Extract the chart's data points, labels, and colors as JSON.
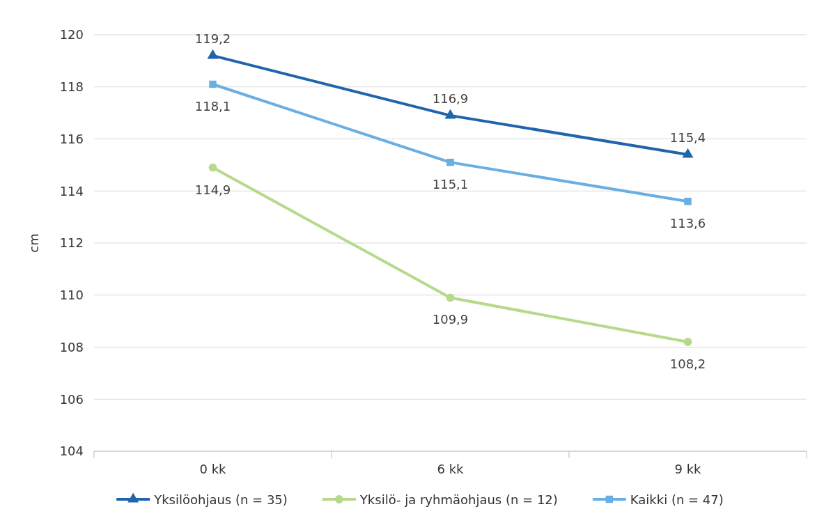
{
  "chart_data": {
    "type": "line",
    "ylabel": "cm",
    "categories": [
      "0 kk",
      "6 kk",
      "9 kk"
    ],
    "series": [
      {
        "name": "Yksilöohjaus (n = 35)",
        "color": "#1f64ad",
        "marker": "triangle",
        "values": [
          119.2,
          116.9,
          115.4
        ],
        "value_labels": [
          "119,2",
          "116,9",
          "115,4"
        ]
      },
      {
        "name": "Yksilö- ja ryhmäohjaus (n = 12)",
        "color": "#b6d98b",
        "marker": "circle",
        "values": [
          114.9,
          109.9,
          108.2
        ],
        "value_labels": [
          "114,9",
          "109,9",
          "108,2"
        ]
      },
      {
        "name": "Kaikki (n = 47)",
        "color": "#6aaee2",
        "marker": "square",
        "values": [
          118.1,
          115.1,
          113.6
        ],
        "value_labels": [
          "118,1",
          "115,1",
          "113,6"
        ]
      }
    ],
    "ylim": [
      104,
      120
    ],
    "yticks": [
      104,
      106,
      108,
      110,
      112,
      114,
      116,
      118,
      120
    ],
    "grid": "y",
    "legend": "bottom",
    "line_style": "solid"
  }
}
